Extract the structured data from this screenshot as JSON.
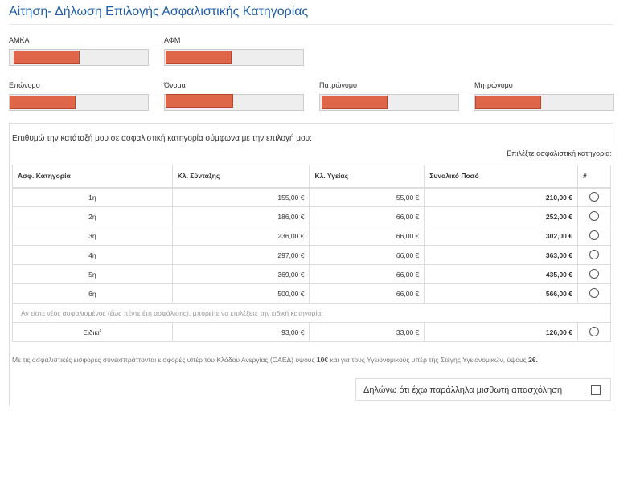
{
  "page": {
    "title": "Αίτηση- Δήλωση Επιλογής Ασφαλιστικής Κατηγορίας"
  },
  "fields": {
    "amka": {
      "label": "ΑΜΚΑ"
    },
    "afm": {
      "label": "ΑΦΜ"
    },
    "surname": {
      "label": "Επώνυμο"
    },
    "name": {
      "label": "Όνομα"
    },
    "father": {
      "label": "Πατρώνυμο"
    },
    "mother": {
      "label": "Μητρώνυμο"
    }
  },
  "insurance": {
    "intro": "Επιθυμώ την κατάταξή μου σε ασφαλιστική κατηγορία σύμφωνα με την επιλογή μου:",
    "pick_label": "Επιλέξτε ασφαλιστική κατηγορία:",
    "headers": {
      "category": "Ασφ. Κατηγορία",
      "pension": "Κλ. Σύνταξης",
      "health": "Κλ. Υγείας",
      "total": "Συνολικό Ποσό",
      "select": "#"
    },
    "rows": [
      {
        "category": "1η",
        "pension": "155,00 €",
        "health": "55,00 €",
        "total": "210,00 €"
      },
      {
        "category": "2η",
        "pension": "186,00 €",
        "health": "66,00 €",
        "total": "252,00 €"
      },
      {
        "category": "3η",
        "pension": "236,00 €",
        "health": "66,00 €",
        "total": "302,00 €"
      },
      {
        "category": "4η",
        "pension": "297,00 €",
        "health": "66,00 €",
        "total": "363,00 €"
      },
      {
        "category": "5η",
        "pension": "369,00 €",
        "health": "66,00 €",
        "total": "435,00 €"
      },
      {
        "category": "6η",
        "pension": "500,00 €",
        "health": "66,00 €",
        "total": "566,00 €"
      }
    ],
    "new_insured_note": "Αν είστε νέος ασφαλισμένος (έως πέντε έτη ασφάλισης), μπορείτε να επιλέξετε την ειδική κατηγορία:",
    "special": {
      "category": "Ειδική",
      "pension": "93,00 €",
      "health": "33,00 €",
      "total": "126,00 €"
    },
    "footer_before": "Με τις ασφαλιστικές εισφορές συνεισπράττονται εισφορές υπέρ του Κλάδου Ανεργίας (ΟΑΕΔ) ύψους ",
    "footer_amount1": "10€",
    "footer_middle": " και για τους Υγειονομικούς υπέρ της Στέγης Υγειονομικών, ύψους ",
    "footer_amount2": "2€",
    "footer_end": ".",
    "employment_label": "Δηλώνω ότι έχω παράλληλα μισθωτή απασχόληση"
  }
}
